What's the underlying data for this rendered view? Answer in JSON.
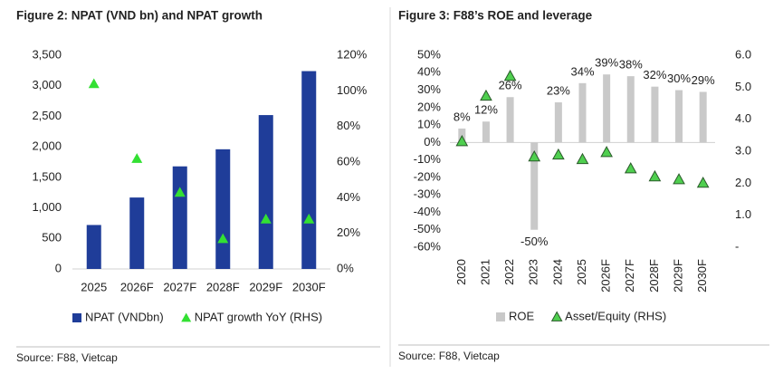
{
  "chart_data": [
    {
      "type": "bar",
      "title": "Figure 2: NPAT (VND bn) and NPAT growth",
      "categories": [
        "2025",
        "2026F",
        "2027F",
        "2028F",
        "2029F",
        "2030F"
      ],
      "series": [
        {
          "name": "NPAT (VNDbn)",
          "type": "bar",
          "color": "#1f3d99",
          "values": [
            720,
            1170,
            1680,
            1960,
            2520,
            3240
          ]
        },
        {
          "name": "NPAT growth YoY (RHS)",
          "type": "scatter",
          "marker": "triangle",
          "color": "#33e033",
          "axis": "y2",
          "values": [
            104,
            62,
            43,
            17,
            28,
            28
          ]
        }
      ],
      "ylim": [
        0,
        3500
      ],
      "yticks": [
        0,
        500,
        {
          "value": 1000,
          "label": "1,000"
        },
        {
          "value": 1500,
          "label": "1,500"
        },
        {
          "value": 2000,
          "label": "2,000"
        },
        {
          "value": 2500,
          "label": "2,500"
        },
        {
          "value": 3000,
          "label": "3,000"
        },
        {
          "value": 3500,
          "label": "3,500"
        }
      ],
      "y2lim": [
        0,
        120
      ],
      "y2ticks": [
        {
          "value": 0,
          "label": "0%"
        },
        {
          "value": 20,
          "label": "20%"
        },
        {
          "value": 40,
          "label": "40%"
        },
        {
          "value": 60,
          "label": "60%"
        },
        {
          "value": 80,
          "label": "80%"
        },
        {
          "value": 100,
          "label": "100%"
        },
        {
          "value": 120,
          "label": "120%"
        }
      ],
      "source": "Source: F88, Vietcap"
    },
    {
      "type": "bar",
      "title": "Figure 3: F88’s ROE and leverage",
      "categories": [
        "2020",
        "2021",
        "2022",
        "2023",
        "2024",
        "2025",
        "2026F",
        "2027F",
        "2028F",
        "2029F",
        "2030F"
      ],
      "series": [
        {
          "name": "ROE",
          "type": "bar",
          "color": "#c9c9c9",
          "values": [
            8,
            12,
            26,
            -50,
            23,
            34,
            39,
            38,
            32,
            30,
            29
          ],
          "value_labels": [
            "8%",
            "12%",
            "26%",
            "-50%",
            "23%",
            "34%",
            "39%",
            "38%",
            "32%",
            "30%",
            "29%"
          ]
        },
        {
          "name": "Asset/Equity (RHS)",
          "type": "scatter",
          "marker": "triangle",
          "color": "#4fcf4f",
          "axis": "y2",
          "values": [
            3.31,
            4.73,
            5.35,
            2.83,
            2.89,
            2.75,
            2.97,
            2.46,
            2.21,
            2.12,
            2.01
          ]
        }
      ],
      "ylim": [
        -60,
        50
      ],
      "yticks": [
        {
          "value": -60,
          "label": "-60%"
        },
        {
          "value": -50,
          "label": "-50%"
        },
        {
          "value": -40,
          "label": "-40%"
        },
        {
          "value": -30,
          "label": "-30%"
        },
        {
          "value": -20,
          "label": "-20%"
        },
        {
          "value": -10,
          "label": "-10%"
        },
        {
          "value": 0,
          "label": "0%"
        },
        {
          "value": 10,
          "label": "10%"
        },
        {
          "value": 20,
          "label": "20%"
        },
        {
          "value": 30,
          "label": "30%"
        },
        {
          "value": 40,
          "label": "40%"
        },
        {
          "value": 50,
          "label": "50%"
        }
      ],
      "y2lim": [
        0,
        6
      ],
      "y2ticks": [
        {
          "value": 0,
          "label": "-"
        },
        {
          "value": 1,
          "label": "1.0"
        },
        {
          "value": 2,
          "label": "2.0"
        },
        {
          "value": 3,
          "label": "3.0"
        },
        {
          "value": 4,
          "label": "4.0"
        },
        {
          "value": 5,
          "label": "5.0"
        },
        {
          "value": 6,
          "label": "6.0"
        }
      ],
      "source": "Source: F88, Vietcap"
    }
  ]
}
